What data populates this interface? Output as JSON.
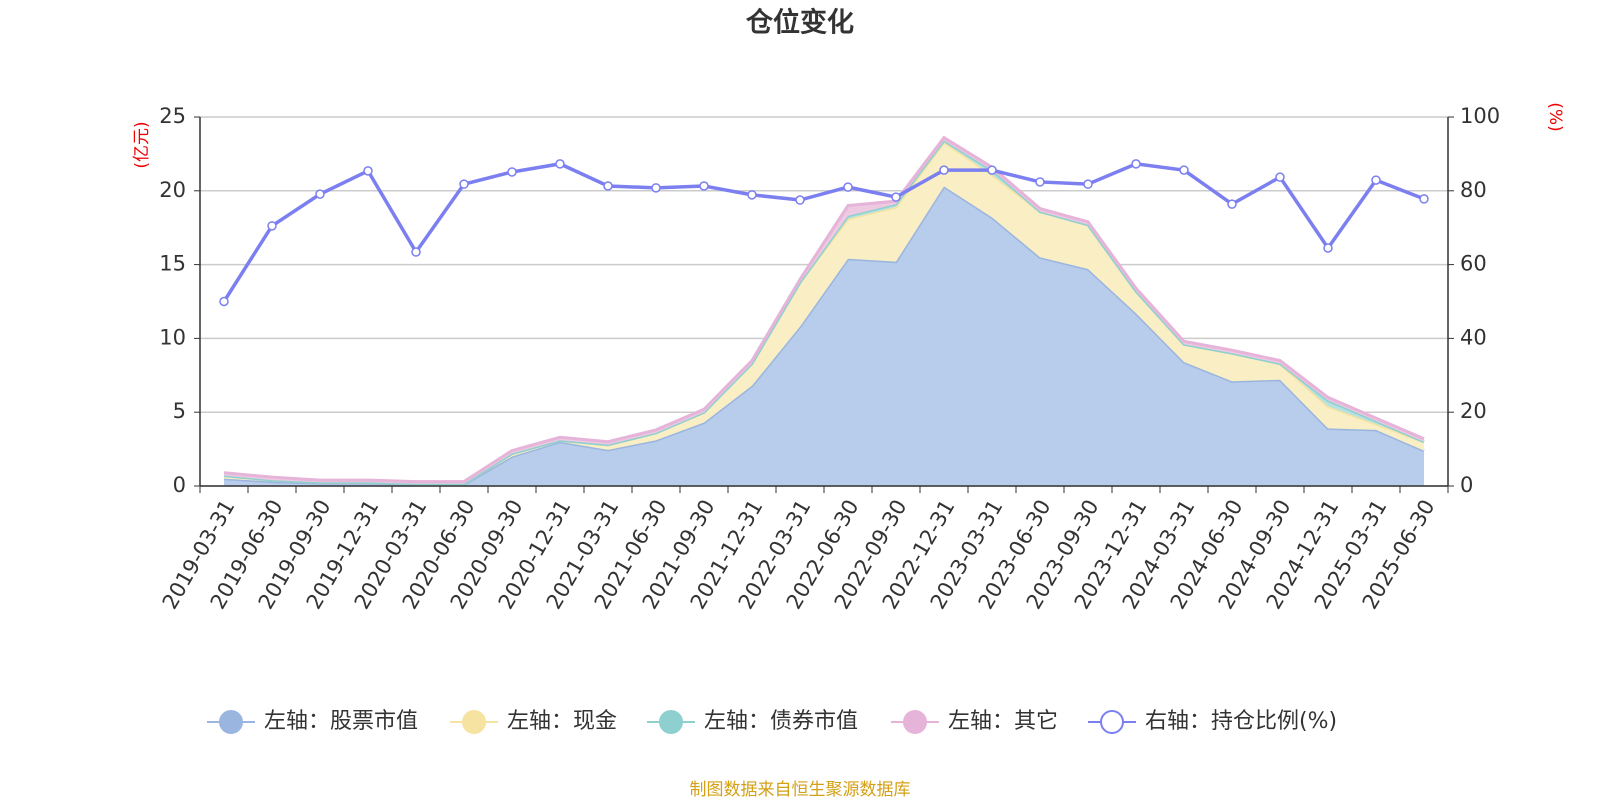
{
  "chart_data": {
    "type": "area",
    "title": "仓位变化",
    "y_label": "(亿元)",
    "y2_label": "(%)",
    "source": "制图数据来自恒生聚源数据库",
    "categories": [
      "2019-03-31",
      "2019-06-30",
      "2019-09-30",
      "2019-12-31",
      "2020-03-31",
      "2020-06-30",
      "2020-09-30",
      "2020-12-31",
      "2021-03-31",
      "2021-06-30",
      "2021-09-30",
      "2021-12-31",
      "2022-03-31",
      "2022-06-30",
      "2022-09-30",
      "2022-12-31",
      "2023-03-31",
      "2023-06-30",
      "2023-09-30",
      "2023-12-31",
      "2024-03-31",
      "2024-06-30",
      "2024-09-30",
      "2024-12-31",
      "2025-03-31",
      "2025-06-30"
    ],
    "series": [
      {
        "name": "左轴：股票市值",
        "type": "area",
        "color": "#9ab5df",
        "fill": "#b8cceb",
        "axis": "y",
        "values": [
          0.5,
          0.3,
          0.2,
          0.2,
          0.1,
          0.1,
          2.0,
          3.0,
          2.45,
          3.1,
          4.3,
          6.8,
          10.8,
          15.4,
          15.2,
          20.3,
          18.2,
          15.5,
          14.7,
          11.7,
          8.4,
          7.1,
          7.2,
          3.9,
          3.8,
          2.4
        ]
      },
      {
        "name": "左轴：现金",
        "type": "area",
        "color": "#f6e3a1",
        "fill": "#f9eec4",
        "axis": "y",
        "values": [
          0.2,
          0.1,
          0.05,
          0.05,
          0.05,
          0.05,
          0.2,
          0.1,
          0.35,
          0.5,
          0.7,
          1.5,
          3.0,
          2.7,
          3.7,
          3.0,
          2.9,
          3.1,
          3.0,
          1.5,
          1.2,
          1.9,
          1.1,
          1.5,
          0.4,
          0.6
        ]
      },
      {
        "name": "左轴：债券市值",
        "type": "area",
        "color": "#8ed0d0",
        "fill": "#b6e2e0",
        "axis": "y",
        "values": [
          0,
          0,
          0,
          0,
          0,
          0,
          0,
          0,
          0,
          0,
          0,
          0,
          0,
          0.2,
          0.2,
          0.1,
          0.3,
          0,
          0,
          0,
          0,
          0,
          0,
          0.4,
          0.2,
          0
        ]
      },
      {
        "name": "左轴：其它",
        "type": "area",
        "color": "#e6b3d9",
        "fill": "#eec9e2",
        "axis": "y",
        "values": [
          0.2,
          0.2,
          0.15,
          0.15,
          0.15,
          0.15,
          0.2,
          0.2,
          0.2,
          0.2,
          0.2,
          0.2,
          0.2,
          0.7,
          0.2,
          0.2,
          0.2,
          0.2,
          0.2,
          0.2,
          0.2,
          0.2,
          0.2,
          0.2,
          0.2,
          0.2
        ]
      },
      {
        "name": "右轴：持仓比例(%)",
        "type": "line",
        "color": "#7b7ff0",
        "axis": "y2",
        "values": [
          50,
          70.5,
          79.1,
          85.4,
          63.4,
          81.8,
          85.1,
          87.3,
          81.3,
          80.8,
          81.3,
          78.9,
          77.5,
          81.0,
          78.3,
          85.6,
          85.6,
          82.4,
          81.8,
          87.3,
          85.6,
          76.4,
          83.7,
          64.5,
          82.9,
          77.8
        ]
      }
    ],
    "ylim": [
      0,
      25
    ],
    "yticks": [
      0,
      5,
      10,
      15,
      20,
      25
    ],
    "y2lim": [
      0,
      100
    ],
    "y2ticks": [
      0,
      20,
      40,
      60,
      80,
      100
    ],
    "grid": true,
    "legend": "bottom"
  }
}
